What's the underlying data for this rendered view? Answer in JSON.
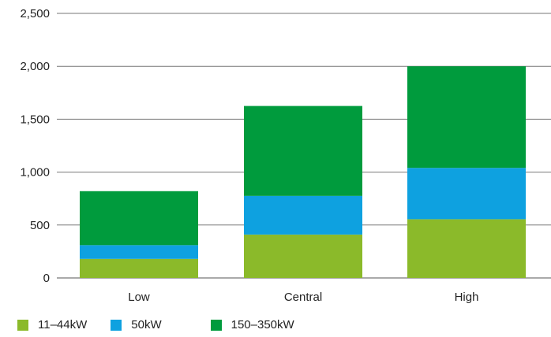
{
  "chart_data": {
    "type": "bar",
    "stacked": true,
    "categories": [
      "Low",
      "Central",
      "High"
    ],
    "series": [
      {
        "name": "11–44kW",
        "color": "#8bba2a",
        "values": [
          180,
          410,
          555
        ]
      },
      {
        "name": "50kW",
        "color": "#0ea1e0",
        "values": [
          130,
          365,
          485
        ]
      },
      {
        "name": "150–350kW",
        "color": "#009b3d",
        "values": [
          510,
          850,
          960
        ]
      }
    ],
    "yticks": [
      "0",
      "500",
      "1,000",
      "1,500",
      "2,000",
      "2,500"
    ],
    "ylim": [
      0,
      2500
    ],
    "grid": true,
    "legend": "bottom"
  }
}
